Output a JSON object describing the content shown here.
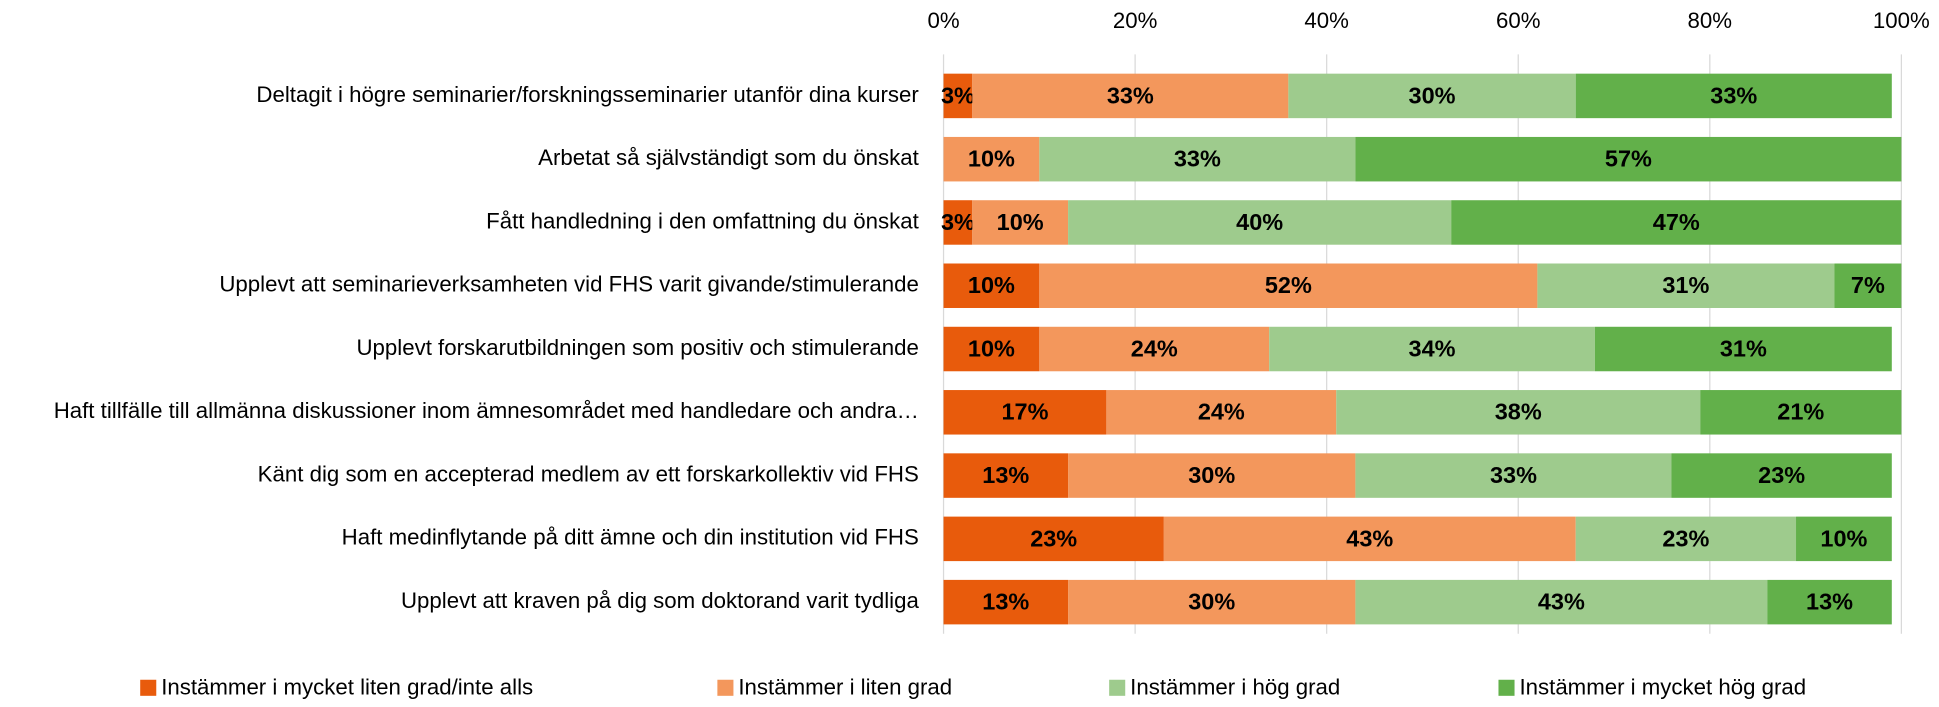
{
  "chart_data": {
    "type": "stacked_barh",
    "categories": [
      "Deltagit i högre seminarier/forskningsseminarier utanför dina kurser",
      "Arbetat så självständigt som du önskat",
      "Fått handledning i den omfattning du önskat",
      "Upplevt att seminarieverksamheten vid FHS varit givande/stimulerande",
      "Upplevt forskarutbildningen som positiv och stimulerande",
      "Haft tillfälle till allmänna diskussioner inom ämnesområdet med handledare och andra…",
      "Känt dig som en accepterad medlem av ett forskarkollektiv vid FHS",
      "Haft medinflytande på ditt ämne och din institution vid FHS",
      "Upplevt att kraven på dig som doktorand varit tydliga"
    ],
    "series": [
      {
        "name": "Instämmer i mycket liten grad/inte alls",
        "color": "#e85b0c",
        "values": [
          3,
          null,
          3,
          10,
          10,
          17,
          13,
          23,
          13
        ],
        "value_labels": [
          "3%",
          null,
          "3%",
          "10%",
          "10%",
          "17%",
          "13%",
          "23%",
          "13%"
        ]
      },
      {
        "name": "Instämmer i liten grad",
        "color": "#f3975c",
        "values": [
          33,
          10,
          10,
          52,
          24,
          24,
          30,
          43,
          30
        ],
        "value_labels": [
          "33%",
          "10%",
          "10%",
          "52%",
          "24%",
          "24%",
          "30%",
          "43%",
          "30%"
        ]
      },
      {
        "name": "Instämmer i hög grad",
        "color": "#9ecb8d",
        "values": [
          30,
          33,
          40,
          31,
          34,
          38,
          33,
          23,
          43
        ],
        "value_labels": [
          "30%",
          "33%",
          "40%",
          "31%",
          "34%",
          "38%",
          "33%",
          "23%",
          "43%"
        ]
      },
      {
        "name": "Instämmer i mycket hög grad",
        "color": "#62b04a",
        "values": [
          33,
          57,
          47,
          7,
          31,
          21,
          23,
          10,
          13
        ],
        "value_labels": [
          "33%",
          "57%",
          "47%",
          "7%",
          "31%",
          "21%",
          "23%",
          "10%",
          "13%"
        ]
      }
    ],
    "xlim": [
      0,
      100
    ],
    "xticks": [
      {
        "value": 0,
        "label": "0%"
      },
      {
        "value": 20,
        "label": "20%"
      },
      {
        "value": 40,
        "label": "40%"
      },
      {
        "value": 60,
        "label": "60%"
      },
      {
        "value": 80,
        "label": "80%"
      },
      {
        "value": 100,
        "label": "100%"
      }
    ],
    "grid": true,
    "legend": "bottom"
  }
}
